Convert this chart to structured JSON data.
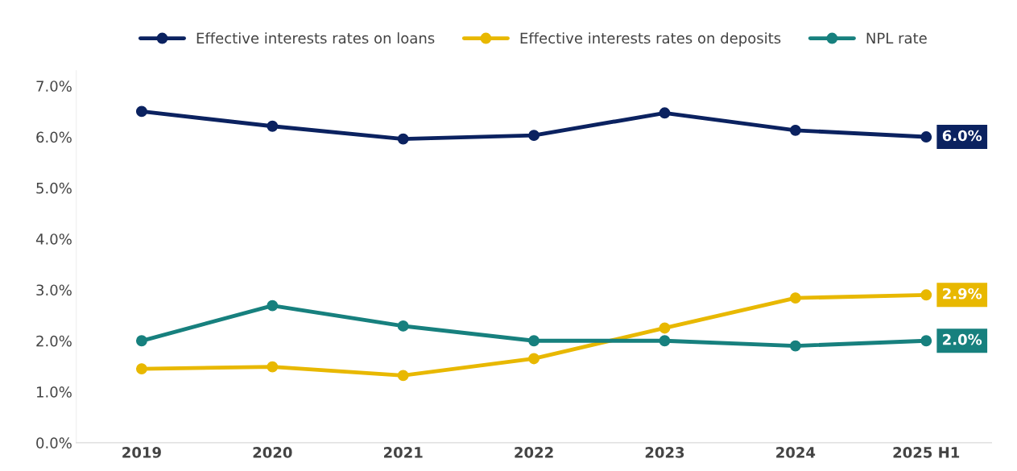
{
  "chart_data": {
    "type": "line",
    "categories": [
      "2019",
      "2020",
      "2021",
      "2022",
      "2023",
      "2024",
      "2025 H1"
    ],
    "series": [
      {
        "name": "Effective interests rates on loans",
        "color": "#0b2260",
        "values": [
          6.5,
          6.21,
          5.96,
          6.03,
          6.47,
          6.13,
          6.0
        ],
        "value_labels": [
          null,
          null,
          null,
          null,
          null,
          null,
          "6.0%"
        ]
      },
      {
        "name": "Effective interests rates on deposits",
        "color": "#e8b800",
        "values": [
          1.45,
          1.49,
          1.32,
          1.65,
          2.25,
          2.84,
          2.9
        ],
        "value_labels": [
          null,
          null,
          null,
          null,
          null,
          null,
          "2.9%"
        ]
      },
      {
        "name": "NPL rate",
        "color": "#17807e",
        "values": [
          2.0,
          2.69,
          2.29,
          2.0,
          2.0,
          1.9,
          2.0
        ],
        "value_labels": [
          null,
          null,
          null,
          null,
          null,
          null,
          "2.0%"
        ]
      }
    ],
    "ylim": [
      0,
      7.3
    ],
    "yticks": [
      {
        "value": 0,
        "label": "0.0%"
      },
      {
        "value": 1,
        "label": "1.0%"
      },
      {
        "value": 2,
        "label": "2.0%"
      },
      {
        "value": 3,
        "label": "3.0%"
      },
      {
        "value": 4,
        "label": "4.0%"
      },
      {
        "value": 5,
        "label": "5.0%"
      },
      {
        "value": 6,
        "label": "6.0%"
      },
      {
        "value": 7,
        "label": "7.0%"
      }
    ],
    "grid": false,
    "legend": "top",
    "marker": "circle",
    "line_style": "solid"
  }
}
